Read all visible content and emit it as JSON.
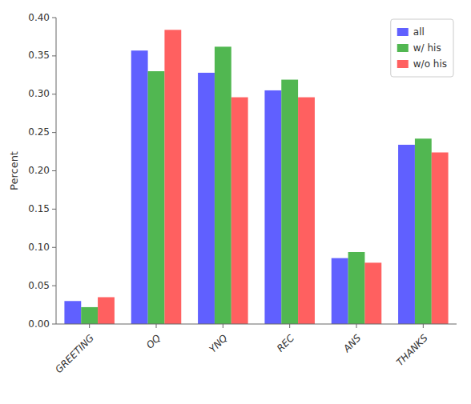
{
  "chart_data": {
    "type": "bar",
    "y_label": "Percent",
    "categories": [
      "GREETING",
      "OQ",
      "YNQ",
      "REC",
      "ANS",
      "THANKS"
    ],
    "series": [
      {
        "name": "all",
        "color": "#4444ff",
        "values": [
          0.03,
          0.357,
          0.328,
          0.305,
          0.086,
          0.234
        ]
      },
      {
        "name": "w/ his",
        "color": "#33aa33",
        "values": [
          0.022,
          0.33,
          0.362,
          0.319,
          0.094,
          0.242
        ]
      },
      {
        "name": "w/o his",
        "color": "#ff4444",
        "values": [
          0.035,
          0.384,
          0.296,
          0.296,
          0.08,
          0.224
        ]
      }
    ],
    "ylim": [
      0.0,
      0.4
    ],
    "yticks": [
      {
        "value": 0.0,
        "label": "0.00"
      },
      {
        "value": 0.05,
        "label": "0.05"
      },
      {
        "value": 0.1,
        "label": "0.10"
      },
      {
        "value": 0.15,
        "label": "0.15"
      },
      {
        "value": 0.2,
        "label": "0.20"
      },
      {
        "value": 0.25,
        "label": "0.25"
      },
      {
        "value": 0.3,
        "label": "0.30"
      },
      {
        "value": 0.35,
        "label": "0.35"
      },
      {
        "value": 0.4,
        "label": "0.40"
      }
    ],
    "legend": "upper-right",
    "grid": false
  }
}
